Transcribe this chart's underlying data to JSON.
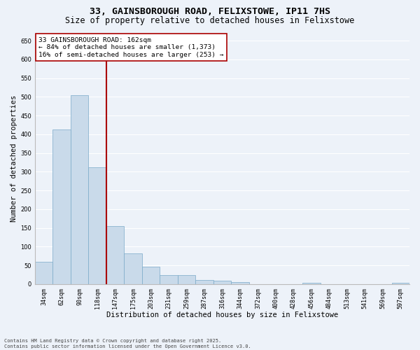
{
  "title1": "33, GAINSBOROUGH ROAD, FELIXSTOWE, IP11 7HS",
  "title2": "Size of property relative to detached houses in Felixstowe",
  "xlabel": "Distribution of detached houses by size in Felixstowe",
  "ylabel": "Number of detached properties",
  "bar_color": "#c9daea",
  "bar_edge_color": "#7aaac8",
  "categories": [
    "34sqm",
    "62sqm",
    "90sqm",
    "118sqm",
    "147sqm",
    "175sqm",
    "203sqm",
    "231sqm",
    "259sqm",
    "287sqm",
    "316sqm",
    "344sqm",
    "372sqm",
    "400sqm",
    "428sqm",
    "456sqm",
    "484sqm",
    "513sqm",
    "541sqm",
    "569sqm",
    "597sqm"
  ],
  "values": [
    60,
    413,
    505,
    313,
    155,
    82,
    46,
    24,
    24,
    11,
    9,
    5,
    0,
    0,
    0,
    4,
    0,
    0,
    0,
    0,
    4
  ],
  "vline_color": "#aa0000",
  "annotation_line1": "33 GAINSBOROUGH ROAD: 162sqm",
  "annotation_line2": "← 84% of detached houses are smaller (1,373)",
  "annotation_line3": "16% of semi-detached houses are larger (253) →",
  "annotation_box_facecolor": "#ffffff",
  "annotation_box_edgecolor": "#aa0000",
  "ylim": [
    0,
    670
  ],
  "yticks": [
    0,
    50,
    100,
    150,
    200,
    250,
    300,
    350,
    400,
    450,
    500,
    550,
    600,
    650
  ],
  "background_color": "#edf2f9",
  "grid_color": "#ffffff",
  "footnote_line1": "Contains HM Land Registry data © Crown copyright and database right 2025.",
  "footnote_line2": "Contains public sector information licensed under the Open Government Licence v3.0.",
  "title1_fontsize": 9.5,
  "title2_fontsize": 8.5,
  "annotation_fontsize": 6.8,
  "xlabel_fontsize": 7.5,
  "ylabel_fontsize": 7.5,
  "tick_fontsize": 6.0,
  "footnote_fontsize": 5.0
}
